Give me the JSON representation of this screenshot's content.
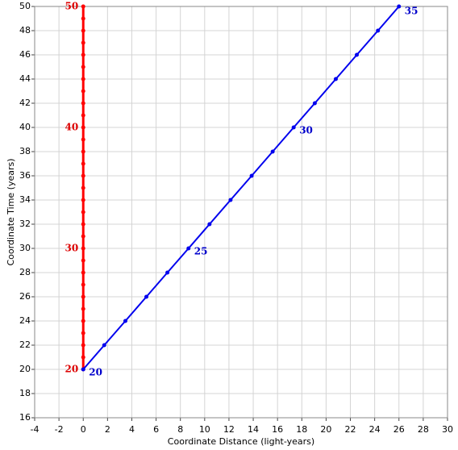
{
  "chart_data": {
    "type": "scatter",
    "xlabel": "Coordinate Distance (light-years)",
    "ylabel": "Coordinate Time (years)",
    "xlim": [
      -4,
      30
    ],
    "ylim": [
      16,
      50
    ],
    "xticks": [
      -4,
      -2,
      0,
      2,
      4,
      6,
      8,
      10,
      12,
      14,
      16,
      18,
      20,
      22,
      24,
      26,
      28,
      30
    ],
    "yticks": [
      16,
      18,
      20,
      22,
      24,
      26,
      28,
      30,
      32,
      34,
      36,
      38,
      40,
      42,
      44,
      46,
      48,
      50
    ],
    "grid": true,
    "series": [
      {
        "color": "#ff0000",
        "x": [
          0,
          0,
          0,
          0,
          0,
          0,
          0,
          0,
          0,
          0,
          0,
          0,
          0,
          0,
          0,
          0,
          0,
          0,
          0,
          0,
          0,
          0,
          0,
          0,
          0,
          0,
          0,
          0,
          0,
          0,
          0
        ],
        "y": [
          20,
          21,
          22,
          23,
          24,
          25,
          26,
          27,
          28,
          29,
          30,
          31,
          32,
          33,
          34,
          35,
          36,
          37,
          38,
          39,
          40,
          41,
          42,
          43,
          44,
          45,
          46,
          47,
          48,
          49,
          50
        ]
      },
      {
        "color": "#0000ee",
        "x": [
          0,
          1.73,
          3.47,
          5.2,
          6.93,
          8.67,
          10.4,
          12.13,
          13.87,
          15.6,
          17.33,
          19.07,
          20.8,
          22.53,
          24.27,
          26
        ],
        "y": [
          20,
          22,
          24,
          26,
          28,
          30,
          32,
          34,
          36,
          38,
          40,
          42,
          44,
          46,
          48,
          50
        ]
      }
    ],
    "annotations": [
      {
        "text": "20",
        "x": 0,
        "y": 20,
        "color": "#dd0000"
      },
      {
        "text": "30",
        "x": 0,
        "y": 30,
        "color": "#dd0000"
      },
      {
        "text": "40",
        "x": 0,
        "y": 40,
        "color": "#dd0000"
      },
      {
        "text": "50",
        "x": 0,
        "y": 50,
        "color": "#dd0000"
      },
      {
        "text": "20",
        "x": 0,
        "y": 20,
        "color": "#0000cc"
      },
      {
        "text": "25",
        "x": 8.67,
        "y": 30,
        "color": "#0000cc"
      },
      {
        "text": "30",
        "x": 17.33,
        "y": 40,
        "color": "#0000cc"
      },
      {
        "text": "35",
        "x": 26,
        "y": 50,
        "color": "#0000cc"
      }
    ]
  }
}
